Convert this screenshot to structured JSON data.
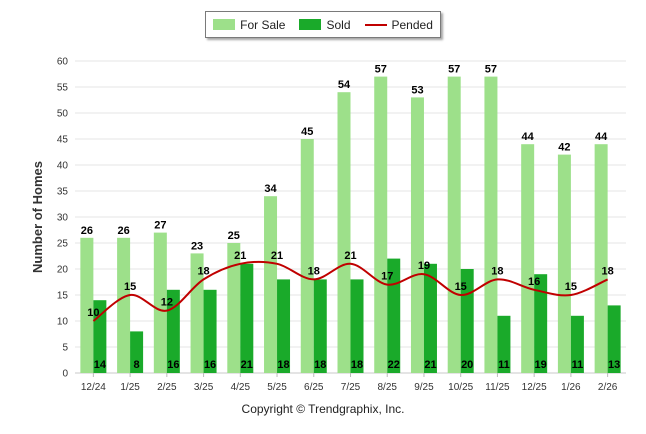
{
  "chart_data": {
    "type": "bar",
    "categories": [
      "12/24",
      "1/25",
      "2/25",
      "3/25",
      "4/25",
      "5/25",
      "6/25",
      "7/25",
      "8/25",
      "9/25",
      "10/25",
      "11/25",
      "12/25",
      "1/26",
      "2/26"
    ],
    "series": [
      {
        "name": "For Sale",
        "type": "bar",
        "color": "#9de08a",
        "values": [
          26,
          26,
          27,
          23,
          25,
          34,
          45,
          54,
          57,
          53,
          57,
          57,
          44,
          42,
          44
        ]
      },
      {
        "name": "Sold",
        "type": "bar",
        "color": "#1aaa2a",
        "values": [
          14,
          8,
          16,
          16,
          21,
          18,
          18,
          18,
          22,
          21,
          20,
          11,
          19,
          11,
          13
        ]
      },
      {
        "name": "Pended",
        "type": "line",
        "color": "#c00000",
        "values": [
          10,
          15,
          12,
          18,
          21,
          21,
          18,
          21,
          17,
          19,
          15,
          18,
          16,
          15,
          18
        ]
      }
    ],
    "ylabel": "Number of Homes",
    "xlabel": "",
    "ylim": [
      0,
      60
    ],
    "yticks": [
      0,
      5,
      10,
      15,
      20,
      25,
      30,
      35,
      40,
      45,
      50,
      55,
      60
    ],
    "grid": true,
    "legend_position": "top-center"
  },
  "footer": "Copyright © Trendgraphix, Inc."
}
